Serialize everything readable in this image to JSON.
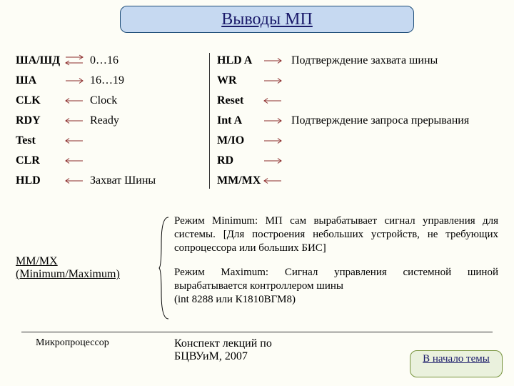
{
  "title": "Выводы МП",
  "left_pins": [
    {
      "name": "ША/ШД",
      "desc": "0…16",
      "dir": "both",
      "bold": true
    },
    {
      "name": "ША",
      "desc": "16…19",
      "dir": "out",
      "bold": true
    },
    {
      "name": "CLK",
      "desc": "Clock",
      "dir": "in",
      "bold": true
    },
    {
      "name": "RDY",
      "desc": "Ready",
      "dir": "in",
      "bold": true
    },
    {
      "name": "Test",
      "desc": "",
      "dir": "in",
      "bold": true
    },
    {
      "name": "CLR",
      "desc": "",
      "dir": "in",
      "bold": true
    },
    {
      "name": "HLD",
      "desc": "Захват Шины",
      "dir": "in",
      "bold": true
    }
  ],
  "right_pins": [
    {
      "name": "HLD A",
      "desc": "Подтверждение захвата шины",
      "dir": "out",
      "bold": true
    },
    {
      "name": "WR",
      "desc": "",
      "dir": "out",
      "bold": true
    },
    {
      "name": "Reset",
      "desc": "",
      "dir": "in",
      "bold": true
    },
    {
      "name": "Int A",
      "desc": "Подтверждение запроса прерывания",
      "dir": "out",
      "bold": true
    },
    {
      "name": "M/IO",
      "desc": "",
      "dir": "out",
      "bold": true
    },
    {
      "name": "RD",
      "desc": "",
      "dir": "out",
      "bold": true
    },
    {
      "name": "MM/MX",
      "desc": "",
      "dir": "in",
      "bold": true
    }
  ],
  "layout": {
    "left_name_width": 68,
    "left_arrow_width": 36,
    "right_name_width": 64,
    "right_arrow_width": 40,
    "arrow_color": "#8b2a2a",
    "arrow_width": 28,
    "arrow_stroke": 1
  },
  "mmmx": {
    "label": "MM/MX (Minimum/Maximum)",
    "p1": "Режим Minimum: МП сам вырабатывает сигнал управления для системы. [Для построения небольших устройств, не требующих сопроцессора или больших БИС]",
    "p2": "Режим Maximum: Сигнал управления системной шиной вырабатывается контроллером шины",
    "p2b": "(int 8288 или К1810ВГМ8)"
  },
  "footer": {
    "left": "Микропроцессор",
    "center": "Конспект лекций по БЦВУиМ, 2007",
    "button": "В начало темы"
  }
}
